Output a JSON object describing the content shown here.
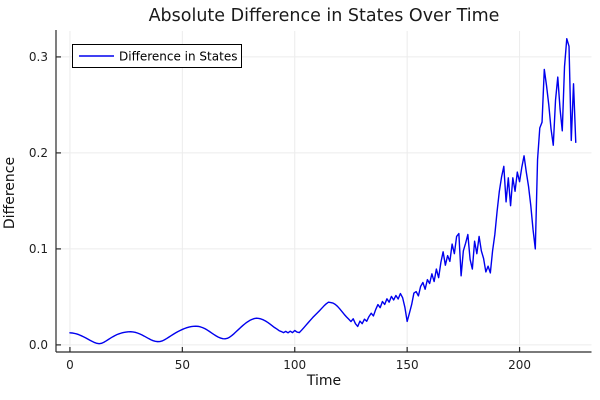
{
  "chart_data": {
    "type": "line",
    "title": "Absolute Difference in States Over Time",
    "xlabel": "Time",
    "ylabel": "Difference",
    "grid": true,
    "legend": {
      "position": "top-left",
      "entries": [
        {
          "label": "Difference in States",
          "color": "#0000EE"
        }
      ]
    },
    "xlim": [
      -6.2,
      232
    ],
    "ylim": [
      -0.0074,
      0.327
    ],
    "xticks": [
      0,
      50,
      100,
      150,
      200
    ],
    "xtick_labels": [
      "0",
      "50",
      "100",
      "150",
      "200"
    ],
    "yticks": [
      0.0,
      0.1,
      0.2,
      0.3
    ],
    "ytick_labels": [
      "0.0",
      "0.1",
      "0.2",
      "0.3"
    ],
    "colors": {
      "line": "#0000EE",
      "grid": "#ececec",
      "spine": "#2a2a2a",
      "background": "#ffffff",
      "legend_border": "#000000"
    },
    "series": [
      {
        "name": "Difference in States",
        "x_rule": {
          "start": 0,
          "step": 1,
          "count": 226
        },
        "y": [
          0.0126,
          0.0124,
          0.012,
          0.0114,
          0.0106,
          0.0096,
          0.0085,
          0.0073,
          0.006,
          0.0047,
          0.0035,
          0.0024,
          0.0016,
          0.0013,
          0.0016,
          0.0026,
          0.004,
          0.0055,
          0.007,
          0.0084,
          0.0097,
          0.0108,
          0.0117,
          0.0124,
          0.013,
          0.0134,
          0.0136,
          0.0137,
          0.0135,
          0.0131,
          0.0124,
          0.0115,
          0.0104,
          0.0092,
          0.0079,
          0.0066,
          0.0054,
          0.0044,
          0.0037,
          0.0034,
          0.0035,
          0.0041,
          0.0052,
          0.0066,
          0.0081,
          0.0096,
          0.0111,
          0.0125,
          0.0138,
          0.015,
          0.0161,
          0.0171,
          0.0179,
          0.0186,
          0.0191,
          0.0194,
          0.0195,
          0.0193,
          0.0188,
          0.018,
          0.0169,
          0.0156,
          0.0141,
          0.0125,
          0.0109,
          0.0094,
          0.0081,
          0.0071,
          0.0065,
          0.0063,
          0.0068,
          0.008,
          0.0097,
          0.0117,
          0.0139,
          0.0161,
          0.0183,
          0.0204,
          0.0223,
          0.024,
          0.0255,
          0.0266,
          0.0274,
          0.0278,
          0.0276,
          0.027,
          0.0261,
          0.0249,
          0.0234,
          0.0217,
          0.0199,
          0.0181,
          0.0166,
          0.0149,
          0.0139,
          0.0128,
          0.0141,
          0.0126,
          0.0143,
          0.0128,
          0.015,
          0.0134,
          0.0128,
          0.0152,
          0.0178,
          0.0205,
          0.0232,
          0.0259,
          0.0285,
          0.0309,
          0.0332,
          0.0356,
          0.0381,
          0.0406,
          0.0428,
          0.0445,
          0.0441,
          0.0436,
          0.0422,
          0.0402,
          0.0376,
          0.0347,
          0.0318,
          0.0292,
          0.0268,
          0.0243,
          0.0272,
          0.0221,
          0.0192,
          0.0248,
          0.0221,
          0.0268,
          0.0246,
          0.0295,
          0.033,
          0.0302,
          0.0368,
          0.042,
          0.0388,
          0.0452,
          0.0421,
          0.048,
          0.0445,
          0.0505,
          0.0468,
          0.0515,
          0.0478,
          0.0535,
          0.049,
          0.039,
          0.0245,
          0.033,
          0.042,
          0.054,
          0.0555,
          0.051,
          0.061,
          0.065,
          0.058,
          0.068,
          0.064,
          0.074,
          0.066,
          0.079,
          0.07,
          0.086,
          0.097,
          0.083,
          0.093,
          0.087,
          0.105,
          0.095,
          0.113,
          0.116,
          0.072,
          0.098,
          0.106,
          0.115,
          0.089,
          0.079,
          0.108,
          0.095,
          0.113,
          0.098,
          0.09,
          0.076,
          0.082,
          0.075,
          0.098,
          0.115,
          0.139,
          0.16,
          0.175,
          0.186,
          0.149,
          0.174,
          0.145,
          0.174,
          0.16,
          0.18,
          0.17,
          0.185,
          0.197,
          0.18,
          0.165,
          0.145,
          0.12,
          0.1,
          0.193,
          0.226,
          0.232,
          0.287,
          0.27,
          0.25,
          0.225,
          0.208,
          0.255,
          0.279,
          0.246,
          0.223,
          0.29,
          0.319,
          0.311,
          0.213,
          0.272,
          0.211
        ]
      }
    ]
  }
}
